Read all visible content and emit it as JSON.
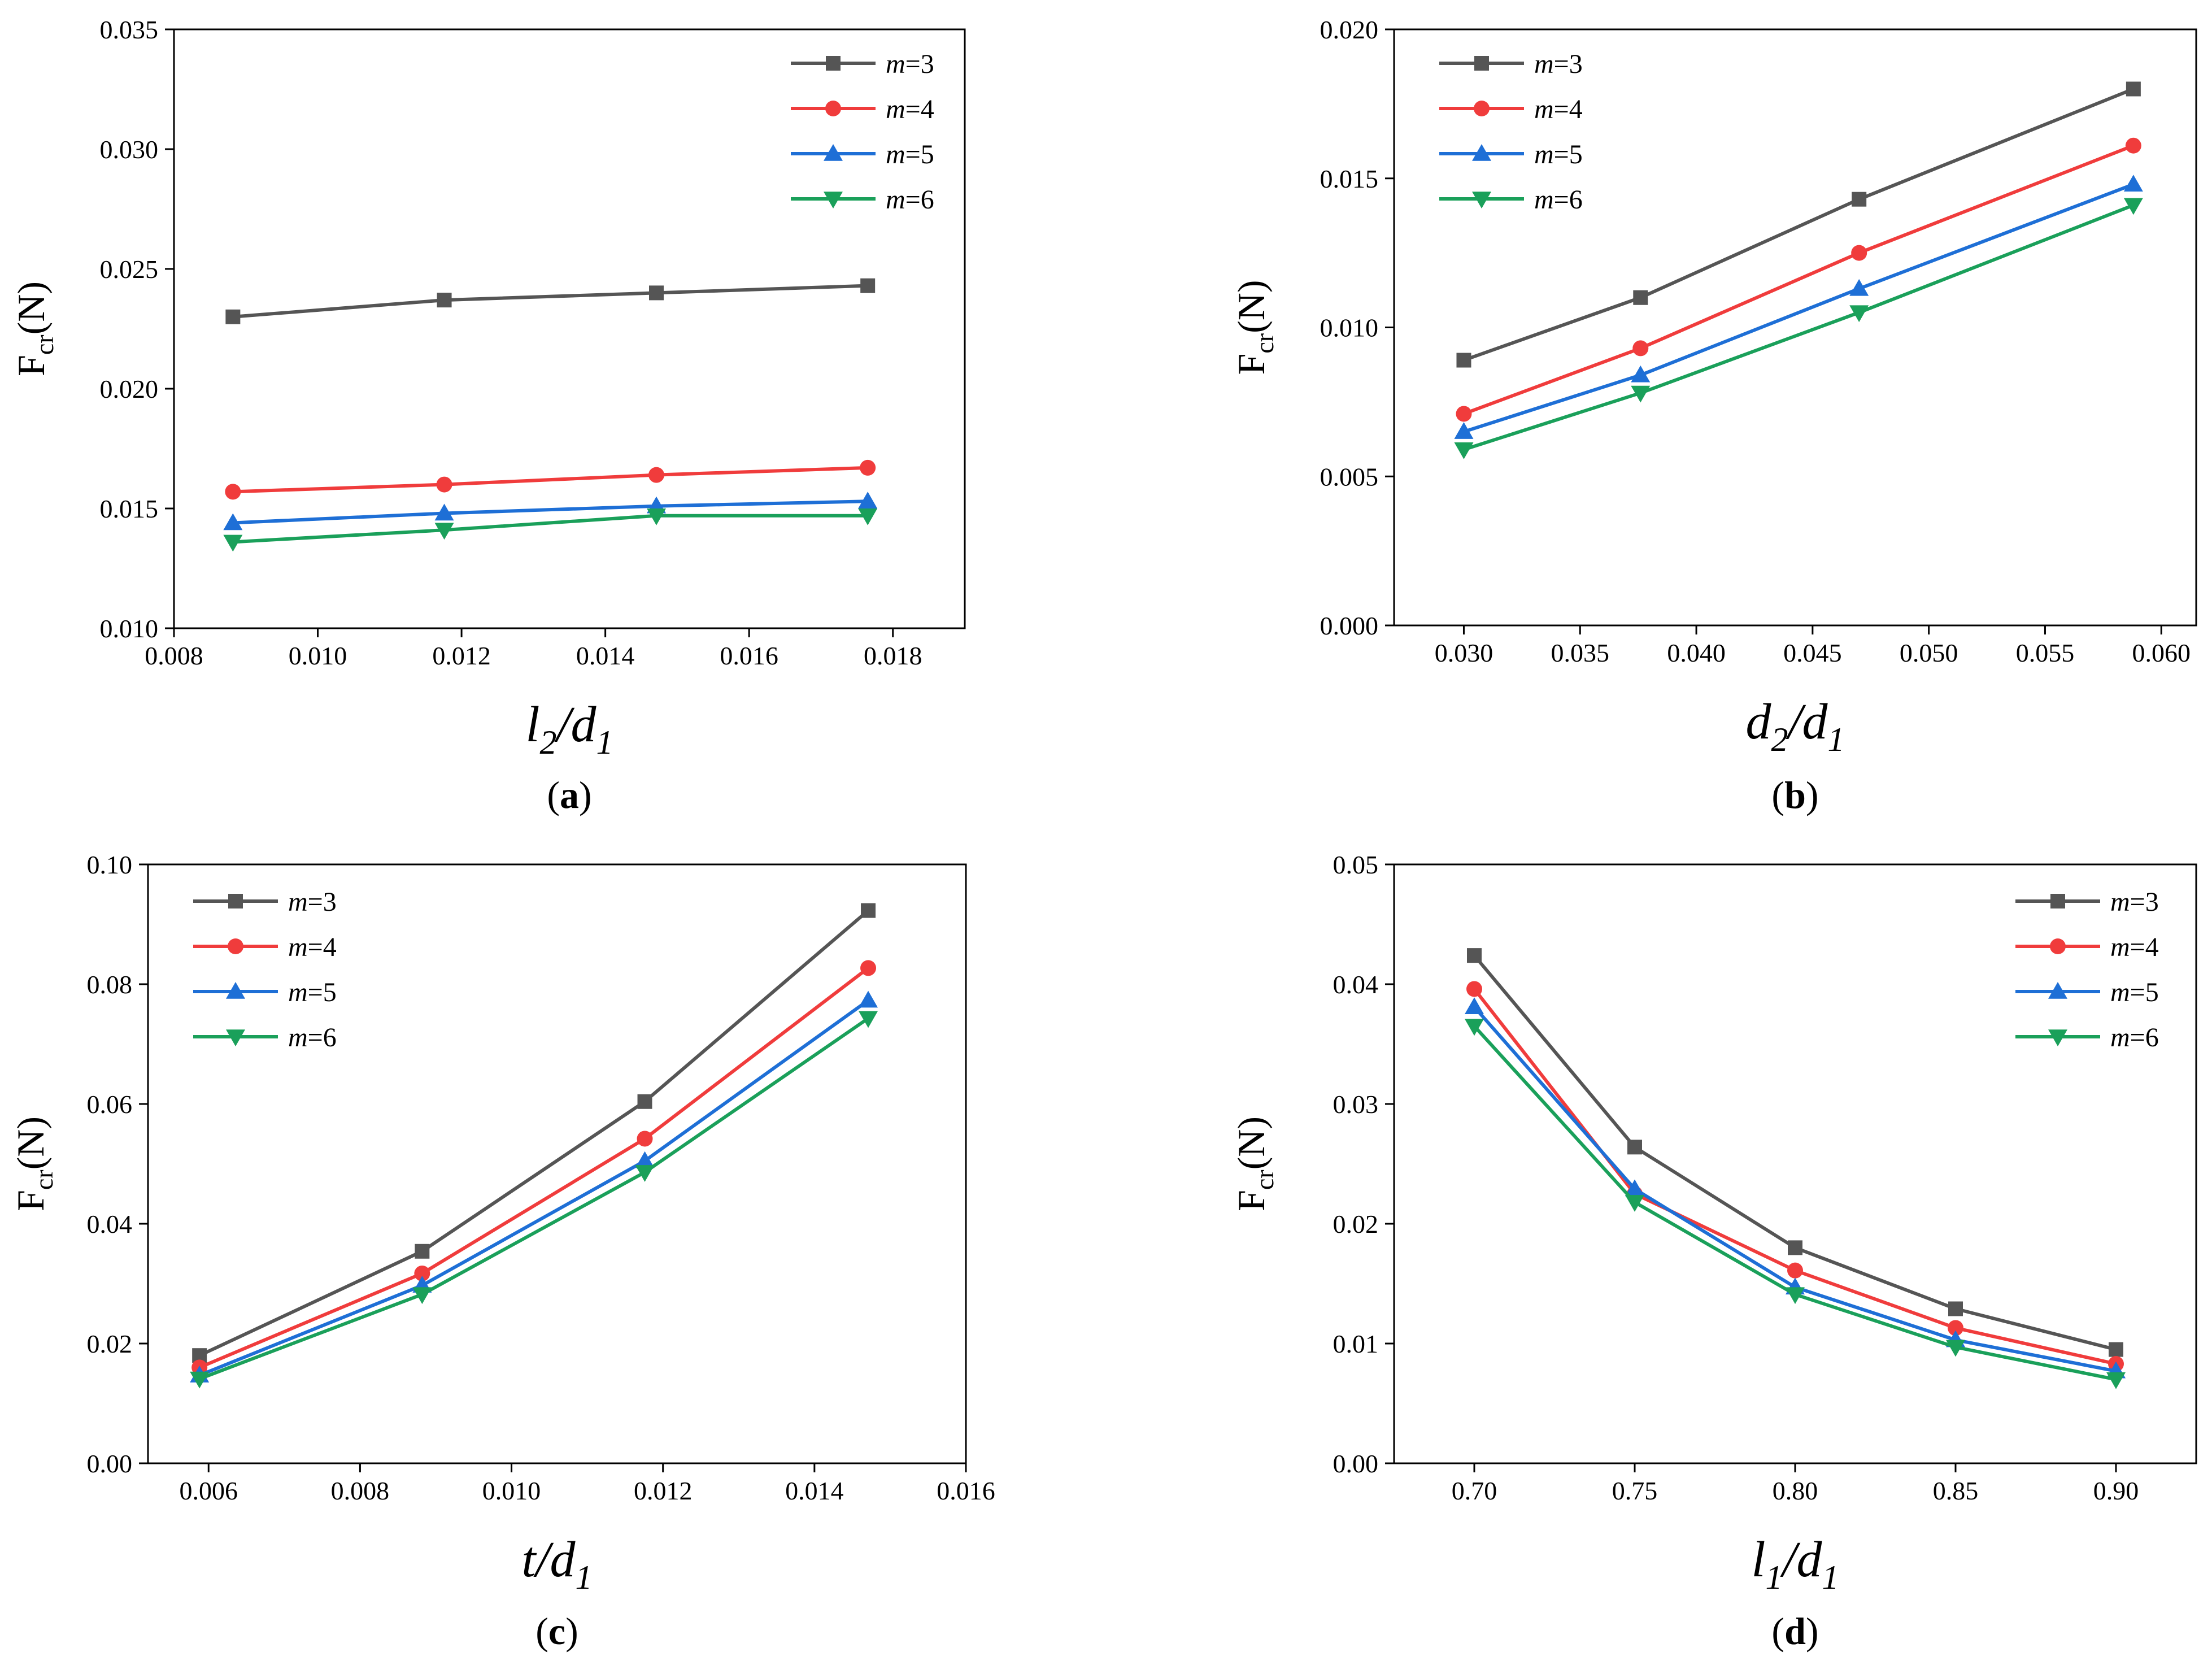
{
  "colors": {
    "m3": "#555555",
    "m4": "#f03c3c",
    "m5": "#1e6fd6",
    "m6": "#1aa05a"
  },
  "chart_data": [
    {
      "id": "a",
      "type": "line",
      "caption": "a",
      "ylabel": {
        "main": "F",
        "sub": "cr",
        "unit": "(N)"
      },
      "xlabel": {
        "main": "l",
        "sub": "2",
        "sep": "/",
        "main2": "d",
        "sub2": "1"
      },
      "xlim": [
        0.008,
        0.019
      ],
      "ylim": [
        0.01,
        0.035
      ],
      "x_ticks": [
        0.008,
        0.01,
        0.012,
        0.014,
        0.016,
        0.018
      ],
      "x_tick_labels": [
        "0.008",
        "0.010",
        "0.012",
        "0.014",
        "0.016",
        "0.018"
      ],
      "y_ticks": [
        0.01,
        0.015,
        0.02,
        0.025,
        0.03,
        0.035
      ],
      "y_tick_labels": [
        "0.010",
        "0.015",
        "0.020",
        "0.025",
        "0.030",
        "0.035"
      ],
      "legend": "top-right",
      "x": [
        0.00882,
        0.01176,
        0.01471,
        0.01765
      ],
      "series": [
        {
          "name": "m=3",
          "var": "m",
          "eq": "=3",
          "color": "#555555",
          "marker": "square",
          "values": [
            0.023,
            0.0237,
            0.024,
            0.0243
          ]
        },
        {
          "name": "m=4",
          "var": "m",
          "eq": "=4",
          "color": "#f03c3c",
          "marker": "circle",
          "values": [
            0.0157,
            0.016,
            0.0164,
            0.0167
          ]
        },
        {
          "name": "m=5",
          "var": "m",
          "eq": "=5",
          "color": "#1e6fd6",
          "marker": "triangle-up",
          "values": [
            0.0144,
            0.0148,
            0.0151,
            0.0153
          ]
        },
        {
          "name": "m=6",
          "var": "m",
          "eq": "=6",
          "color": "#1aa05a",
          "marker": "triangle-down",
          "values": [
            0.0136,
            0.0141,
            0.0147,
            0.0147
          ]
        }
      ]
    },
    {
      "id": "b",
      "type": "line",
      "caption": "b",
      "ylabel": {
        "main": "F",
        "sub": "cr",
        "unit": "(N)"
      },
      "xlabel": {
        "main": "d",
        "sub": "2",
        "sep": "/",
        "main2": "d",
        "sub2": "1"
      },
      "xlim": [
        0.027,
        0.0615
      ],
      "ylim": [
        0.0,
        0.02
      ],
      "x_ticks": [
        0.03,
        0.035,
        0.04,
        0.045,
        0.05,
        0.055,
        0.06
      ],
      "x_tick_labels": [
        "0.030",
        "0.035",
        "0.040",
        "0.045",
        "0.050",
        "0.055",
        "0.060"
      ],
      "y_ticks": [
        0.0,
        0.005,
        0.01,
        0.015,
        0.02
      ],
      "y_tick_labels": [
        "0.000",
        "0.005",
        "0.010",
        "0.015",
        "0.020"
      ],
      "legend": "top-left",
      "x": [
        0.03,
        0.0376,
        0.047,
        0.0588
      ],
      "series": [
        {
          "name": "m=3",
          "var": "m",
          "eq": "=3",
          "color": "#555555",
          "marker": "square",
          "values": [
            0.0089,
            0.011,
            0.0143,
            0.018
          ]
        },
        {
          "name": "m=4",
          "var": "m",
          "eq": "=4",
          "color": "#f03c3c",
          "marker": "circle",
          "values": [
            0.0071,
            0.0093,
            0.0125,
            0.0161
          ]
        },
        {
          "name": "m=5",
          "var": "m",
          "eq": "=5",
          "color": "#1e6fd6",
          "marker": "triangle-up",
          "values": [
            0.0065,
            0.0084,
            0.0113,
            0.0148
          ]
        },
        {
          "name": "m=6",
          "var": "m",
          "eq": "=6",
          "color": "#1aa05a",
          "marker": "triangle-down",
          "values": [
            0.0059,
            0.0078,
            0.0105,
            0.0141
          ]
        }
      ]
    },
    {
      "id": "c",
      "type": "line",
      "caption": "c",
      "ylabel": {
        "main": "F",
        "sub": "cr",
        "unit": "(N)"
      },
      "xlabel": {
        "main": "t",
        "sub": "",
        "sep": "/",
        "main2": "d",
        "sub2": "1"
      },
      "xlim": [
        0.0052,
        0.016
      ],
      "ylim": [
        0.0,
        0.1
      ],
      "x_ticks": [
        0.006,
        0.008,
        0.01,
        0.012,
        0.014,
        0.016
      ],
      "x_tick_labels": [
        "0.006",
        "0.008",
        "0.010",
        "0.012",
        "0.014",
        "0.016"
      ],
      "y_ticks": [
        0.0,
        0.02,
        0.04,
        0.06,
        0.08,
        0.1
      ],
      "y_tick_labels": [
        "0.00",
        "0.02",
        "0.04",
        "0.06",
        "0.08",
        "0.10"
      ],
      "legend": "top-left",
      "x": [
        0.00588,
        0.00882,
        0.01176,
        0.01471
      ],
      "series": [
        {
          "name": "m=3",
          "var": "m",
          "eq": "=3",
          "color": "#555555",
          "marker": "square",
          "values": [
            0.018,
            0.0354,
            0.0604,
            0.0923
          ]
        },
        {
          "name": "m=4",
          "var": "m",
          "eq": "=4",
          "color": "#f03c3c",
          "marker": "circle",
          "values": [
            0.016,
            0.0317,
            0.0542,
            0.0827
          ]
        },
        {
          "name": "m=5",
          "var": "m",
          "eq": "=5",
          "color": "#1e6fd6",
          "marker": "triangle-up",
          "values": [
            0.0147,
            0.0297,
            0.0505,
            0.0773
          ]
        },
        {
          "name": "m=6",
          "var": "m",
          "eq": "=6",
          "color": "#1aa05a",
          "marker": "triangle-down",
          "values": [
            0.0141,
            0.0282,
            0.0486,
            0.0743
          ]
        }
      ]
    },
    {
      "id": "d",
      "type": "line",
      "caption": "d",
      "ylabel": {
        "main": "F",
        "sub": "cr",
        "unit": "(N)"
      },
      "xlabel": {
        "main": "l",
        "sub": "1",
        "sep": "/",
        "main2": "d",
        "sub2": "1"
      },
      "xlim": [
        0.675,
        0.925
      ],
      "ylim": [
        0.0,
        0.05
      ],
      "x_ticks": [
        0.7,
        0.75,
        0.8,
        0.85,
        0.9
      ],
      "x_tick_labels": [
        "0.70",
        "0.75",
        "0.80",
        "0.85",
        "0.90"
      ],
      "y_ticks": [
        0.0,
        0.01,
        0.02,
        0.03,
        0.04,
        0.05
      ],
      "y_tick_labels": [
        "0.00",
        "0.01",
        "0.02",
        "0.03",
        "0.04",
        "0.05"
      ],
      "legend": "top-right",
      "x": [
        0.7,
        0.75,
        0.8,
        0.85,
        0.9
      ],
      "series": [
        {
          "name": "m=3",
          "var": "m",
          "eq": "=3",
          "color": "#555555",
          "marker": "square",
          "values": [
            0.0424,
            0.0264,
            0.018,
            0.0129,
            0.0095
          ]
        },
        {
          "name": "m=4",
          "var": "m",
          "eq": "=4",
          "color": "#f03c3c",
          "marker": "circle",
          "values": [
            0.0396,
            0.0225,
            0.0161,
            0.0113,
            0.0083
          ]
        },
        {
          "name": "m=5",
          "var": "m",
          "eq": "=5",
          "color": "#1e6fd6",
          "marker": "triangle-up",
          "values": [
            0.0381,
            0.0229,
            0.0147,
            0.0103,
            0.0077
          ]
        },
        {
          "name": "m=6",
          "var": "m",
          "eq": "=6",
          "color": "#1aa05a",
          "marker": "triangle-down",
          "values": [
            0.0365,
            0.0218,
            0.0141,
            0.0097,
            0.007
          ]
        }
      ]
    }
  ]
}
